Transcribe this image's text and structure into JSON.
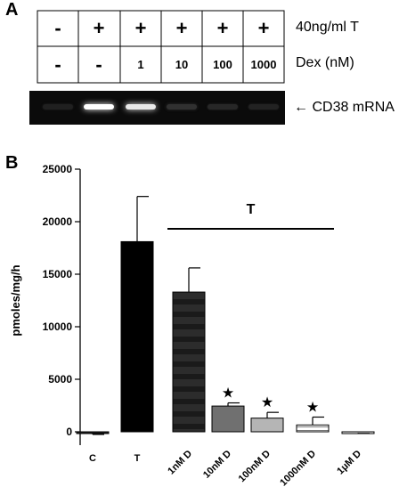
{
  "panel_a": {
    "letter": "A",
    "row1": {
      "cells": [
        "-",
        "+",
        "+",
        "+",
        "+",
        "+"
      ],
      "label": "40ng/ml T"
    },
    "row2": {
      "cells": [
        "-",
        "-",
        "1",
        "10",
        "100",
        "1000"
      ],
      "label": "Dex (nM)"
    },
    "gel": {
      "label": "CD38 mRNA",
      "band_intensity": [
        0.05,
        1.0,
        0.9,
        0.12,
        0.08,
        0.06
      ]
    }
  },
  "panel_b": {
    "letter": "B"
  },
  "chart_data": {
    "type": "bar",
    "ylabel": "pmoles/mg/h",
    "ylim": [
      0,
      25000
    ],
    "yticks": [
      0,
      5000,
      10000,
      15000,
      20000,
      25000
    ],
    "ytick_labels": [
      "0",
      "5000",
      "10000",
      "15000",
      "20000",
      "25000"
    ],
    "categories": [
      "C",
      "T",
      "1nM D",
      "10nM D",
      "100nM D",
      "1000nM D",
      "1μM D"
    ],
    "values": [
      -150,
      18100,
      13300,
      2450,
      1300,
      650,
      -100
    ],
    "errors": [
      100,
      4300,
      2300,
      300,
      550,
      750,
      50
    ],
    "significant": [
      false,
      false,
      false,
      true,
      true,
      true,
      false
    ],
    "significance_marker": "★",
    "bracket_label": "T",
    "bracket_span": [
      "1nM D",
      "1000nM D"
    ],
    "bar_styles": [
      "dark",
      "black",
      "stripes-dark",
      "mid-gray",
      "light-gray",
      "white-lines",
      "white-lines"
    ]
  }
}
